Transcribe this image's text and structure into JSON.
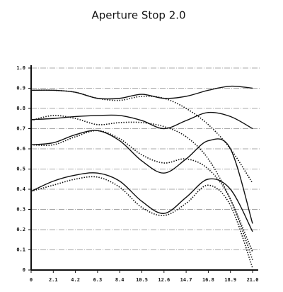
{
  "chart_data": {
    "type": "line",
    "title": "Aperture Stop  2.0",
    "x": [
      0,
      2.1,
      4.2,
      6.3,
      8.4,
      10.5,
      12.6,
      14.7,
      16.8,
      18.9,
      21
    ],
    "xlim": [
      0,
      21
    ],
    "xticks": [
      0,
      2.1,
      4.2,
      6.3,
      8.4,
      10.5,
      12.6,
      14.7,
      16.8,
      18.9,
      {
        "value": 21,
        "label": "21.0"
      }
    ],
    "ylim": [
      0,
      1
    ],
    "yticks": [
      0,
      0.1,
      0.2,
      0.3,
      0.4,
      0.5,
      0.6,
      0.7,
      0.8,
      0.9,
      {
        "value": 1,
        "label": "1.0"
      }
    ],
    "grid": true,
    "series": [
      {
        "color": "#111111",
        "style": "solid",
        "values": [
          0.89,
          0.89,
          0.88,
          0.85,
          0.85,
          0.87,
          0.85,
          0.86,
          0.89,
          0.91,
          0.9
        ]
      },
      {
        "color": "#111111",
        "style": "dotted",
        "values": [
          0.89,
          0.89,
          0.88,
          0.85,
          0.84,
          0.86,
          0.85,
          0.8,
          0.72,
          0.6,
          0.43
        ]
      },
      {
        "color": "#111111",
        "style": "solid",
        "values": [
          0.745,
          0.75,
          0.76,
          0.765,
          0.765,
          0.74,
          0.7,
          0.74,
          0.78,
          0.76,
          0.7
        ]
      },
      {
        "color": "#111111",
        "style": "dotted",
        "values": [
          0.74,
          0.765,
          0.75,
          0.72,
          0.73,
          0.73,
          0.71,
          0.66,
          0.55,
          0.35,
          0.09
        ]
      },
      {
        "color": "#111111",
        "style": "solid",
        "values": [
          0.62,
          0.63,
          0.67,
          0.69,
          0.64,
          0.54,
          0.48,
          0.55,
          0.64,
          0.6,
          0.23
        ]
      },
      {
        "color": "#111111",
        "style": "dotted",
        "values": [
          0.62,
          0.62,
          0.66,
          0.69,
          0.65,
          0.57,
          0.53,
          0.55,
          0.5,
          0.35,
          0.05
        ]
      },
      {
        "color": "#111111",
        "style": "solid",
        "values": [
          0.39,
          0.44,
          0.47,
          0.48,
          0.44,
          0.34,
          0.28,
          0.36,
          0.45,
          0.4,
          0.19
        ]
      },
      {
        "color": "#111111",
        "style": "dotted",
        "values": [
          0.39,
          0.42,
          0.45,
          0.46,
          0.41,
          0.31,
          0.27,
          0.33,
          0.42,
          0.32,
          0.01
        ]
      }
    ]
  }
}
